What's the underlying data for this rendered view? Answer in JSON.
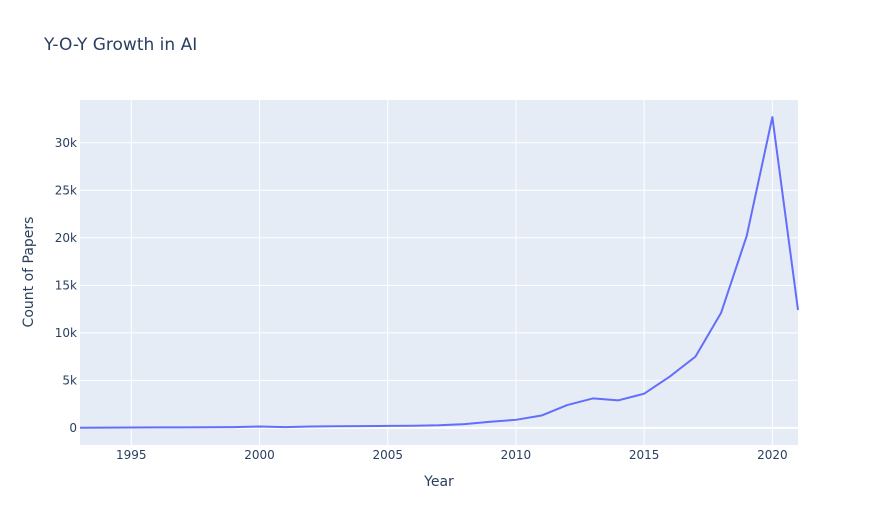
{
  "chart_data": {
    "type": "line",
    "title": "Y-O-Y Growth in AI",
    "xlabel": "Year",
    "ylabel": "Count of Papers",
    "xlim": [
      1993,
      2021
    ],
    "ylim": [
      -1800,
      34500
    ],
    "xticks": [
      1995,
      2000,
      2005,
      2010,
      2015,
      2020
    ],
    "xtick_labels": [
      "1995",
      "2000",
      "2005",
      "2010",
      "2015",
      "2020"
    ],
    "yticks": [
      0,
      5000,
      10000,
      15000,
      20000,
      25000,
      30000
    ],
    "ytick_labels": [
      "0",
      "5k",
      "10k",
      "15k",
      "20k",
      "25k",
      "30k"
    ],
    "grid": true,
    "background_color": "#e5ecf6",
    "line_color": "#636efa",
    "x": [
      1993,
      1994,
      1995,
      1996,
      1997,
      1998,
      1999,
      2000,
      2001,
      2002,
      2003,
      2004,
      2005,
      2006,
      2007,
      2008,
      2009,
      2010,
      2011,
      2012,
      2013,
      2014,
      2015,
      2016,
      2017,
      2018,
      2019,
      2020,
      2021
    ],
    "y": [
      20,
      30,
      40,
      50,
      60,
      70,
      80,
      150,
      80,
      150,
      170,
      190,
      210,
      230,
      280,
      400,
      650,
      850,
      1300,
      2400,
      3100,
      2900,
      3600,
      5400,
      7500,
      12100,
      20200,
      32700,
      12400
    ]
  }
}
